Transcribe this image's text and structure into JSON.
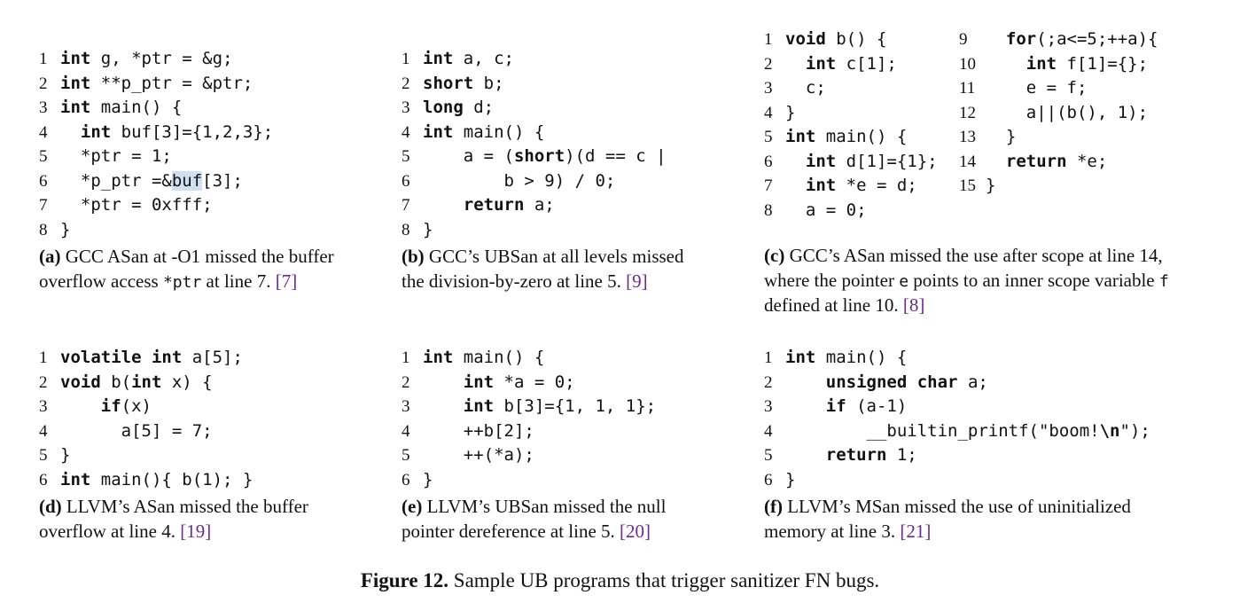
{
  "panels": {
    "a": {
      "code": [
        {
          "n": "1",
          "seg": [
            {
              "k": true,
              "t": "int"
            },
            {
              "t": " g, *ptr = &g;"
            }
          ]
        },
        {
          "n": "2",
          "seg": [
            {
              "k": true,
              "t": "int"
            },
            {
              "t": " **p_ptr = &ptr;"
            }
          ]
        },
        {
          "n": "3",
          "seg": [
            {
              "k": true,
              "t": "int"
            },
            {
              "t": " main() {"
            }
          ]
        },
        {
          "n": "4",
          "seg": [
            {
              "t": "  "
            },
            {
              "k": true,
              "t": "int"
            },
            {
              "t": " buf[3]={1,2,3};"
            }
          ]
        },
        {
          "n": "5",
          "seg": [
            {
              "t": "  *ptr = 1;"
            }
          ]
        },
        {
          "n": "6",
          "seg": [
            {
              "t": "  *p_ptr =&"
            },
            {
              "h": true,
              "t": "buf"
            },
            {
              "t": "[3];"
            }
          ]
        },
        {
          "n": "7",
          "seg": [
            {
              "t": "  *ptr = 0xfff;"
            }
          ]
        },
        {
          "n": "8",
          "seg": [
            {
              "t": "}"
            }
          ]
        }
      ],
      "caption_tag": "(a)",
      "caption_parts": [
        {
          "t": " GCC ASan at -O1 missed the buffer overflow access "
        },
        {
          "m": true,
          "t": "*ptr"
        },
        {
          "t": " at line 7. "
        },
        {
          "r": true,
          "t": "[7]"
        }
      ]
    },
    "b": {
      "code": [
        {
          "n": "1",
          "seg": [
            {
              "k": true,
              "t": "int"
            },
            {
              "t": " a, c;"
            }
          ]
        },
        {
          "n": "2",
          "seg": [
            {
              "k": true,
              "t": "short"
            },
            {
              "t": " b;"
            }
          ]
        },
        {
          "n": "3",
          "seg": [
            {
              "k": true,
              "t": "long"
            },
            {
              "t": " d;"
            }
          ]
        },
        {
          "n": "4",
          "seg": [
            {
              "k": true,
              "t": "int"
            },
            {
              "t": " main() {"
            }
          ]
        },
        {
          "n": "5",
          "seg": [
            {
              "t": "    a = ("
            },
            {
              "k": true,
              "t": "short"
            },
            {
              "t": ")(d == c |"
            }
          ]
        },
        {
          "n": "6",
          "seg": [
            {
              "t": "        b > 9) / 0;"
            }
          ]
        },
        {
          "n": "7",
          "seg": [
            {
              "t": "    "
            },
            {
              "k": true,
              "t": "return"
            },
            {
              "t": " a;"
            }
          ]
        },
        {
          "n": "8",
          "seg": [
            {
              "t": "}"
            }
          ]
        }
      ],
      "caption_tag": "(b)",
      "caption_parts": [
        {
          "t": " GCC’s UBSan at all levels missed the division-by-zero at line 5. "
        },
        {
          "r": true,
          "t": "[9]"
        }
      ]
    },
    "c_left": {
      "code": [
        {
          "n": "1",
          "seg": [
            {
              "k": true,
              "t": "void"
            },
            {
              "t": " b() {"
            }
          ]
        },
        {
          "n": "2",
          "seg": [
            {
              "t": "  "
            },
            {
              "k": true,
              "t": "int"
            },
            {
              "t": " c[1];"
            }
          ]
        },
        {
          "n": "3",
          "seg": [
            {
              "t": "  c;"
            }
          ]
        },
        {
          "n": "4",
          "seg": [
            {
              "t": "}"
            }
          ]
        },
        {
          "n": "5",
          "seg": [
            {
              "k": true,
              "t": "int"
            },
            {
              "t": " main() {"
            }
          ]
        },
        {
          "n": "6",
          "seg": [
            {
              "t": "  "
            },
            {
              "k": true,
              "t": "int"
            },
            {
              "t": " d[1]={1};"
            }
          ]
        },
        {
          "n": "7",
          "seg": [
            {
              "t": "  "
            },
            {
              "k": true,
              "t": "int"
            },
            {
              "t": " *e = d;"
            }
          ]
        },
        {
          "n": "8",
          "seg": [
            {
              "t": "  a = 0;"
            }
          ]
        }
      ]
    },
    "c_right": {
      "code": [
        {
          "n": "9",
          "seg": [
            {
              "t": "  "
            },
            {
              "k": true,
              "t": "for"
            },
            {
              "t": "(;a<=5;++a){"
            }
          ]
        },
        {
          "n": "10",
          "seg": [
            {
              "t": "    "
            },
            {
              "k": true,
              "t": "int"
            },
            {
              "t": " f[1]={};"
            }
          ]
        },
        {
          "n": "11",
          "seg": [
            {
              "t": "    e = f;"
            }
          ]
        },
        {
          "n": "12",
          "seg": [
            {
              "t": "    a||(b(), 1);"
            }
          ]
        },
        {
          "n": "13",
          "seg": [
            {
              "t": "  }"
            }
          ]
        },
        {
          "n": "14",
          "seg": [
            {
              "t": "  "
            },
            {
              "k": true,
              "t": "return"
            },
            {
              "t": " *e;"
            }
          ]
        },
        {
          "n": "15",
          "seg": [
            {
              "t": "}"
            }
          ]
        }
      ],
      "caption_tag": "(c)",
      "caption_parts": [
        {
          "t": " GCC’s ASan missed the use after scope at line 14, where the pointer "
        },
        {
          "m": true,
          "t": "e"
        },
        {
          "t": " points to an inner scope variable "
        },
        {
          "m": true,
          "t": "f"
        },
        {
          "t": " defined at line 10. "
        },
        {
          "r": true,
          "t": "[8]"
        }
      ]
    },
    "d": {
      "code": [
        {
          "n": "1",
          "seg": [
            {
              "k": true,
              "t": "volatile"
            },
            {
              "t": " "
            },
            {
              "k": true,
              "t": "int"
            },
            {
              "t": " a[5];"
            }
          ]
        },
        {
          "n": "2",
          "seg": [
            {
              "k": true,
              "t": "void"
            },
            {
              "t": " b("
            },
            {
              "k": true,
              "t": "int"
            },
            {
              "t": " x) {"
            }
          ]
        },
        {
          "n": "3",
          "seg": [
            {
              "t": "    "
            },
            {
              "k": true,
              "t": "if"
            },
            {
              "t": "(x)"
            }
          ]
        },
        {
          "n": "4",
          "seg": [
            {
              "t": "      a[5] = 7;"
            }
          ]
        },
        {
          "n": "5",
          "seg": [
            {
              "t": "}"
            }
          ]
        },
        {
          "n": "6",
          "seg": [
            {
              "k": true,
              "t": "int"
            },
            {
              "t": " main(){ b(1); }"
            }
          ]
        }
      ],
      "caption_tag": "(d)",
      "caption_parts": [
        {
          "t": " LLVM’s ASan missed the buffer overflow at line 4. "
        },
        {
          "r": true,
          "t": "[19]"
        }
      ]
    },
    "e": {
      "code": [
        {
          "n": "1",
          "seg": [
            {
              "k": true,
              "t": "int"
            },
            {
              "t": " main() {"
            }
          ]
        },
        {
          "n": "2",
          "seg": [
            {
              "t": "    "
            },
            {
              "k": true,
              "t": "int"
            },
            {
              "t": " *a = 0;"
            }
          ]
        },
        {
          "n": "3",
          "seg": [
            {
              "t": "    "
            },
            {
              "k": true,
              "t": "int"
            },
            {
              "t": " b[3]={1, 1, 1};"
            }
          ]
        },
        {
          "n": "4",
          "seg": [
            {
              "t": "    ++b[2];"
            }
          ]
        },
        {
          "n": "5",
          "seg": [
            {
              "t": "    ++(*a);"
            }
          ]
        },
        {
          "n": "6",
          "seg": [
            {
              "t": "}"
            }
          ]
        }
      ],
      "caption_tag": "(e)",
      "caption_parts": [
        {
          "t": " LLVM’s UBSan missed the null pointer dereference at line 5. "
        },
        {
          "r": true,
          "t": "[20]"
        }
      ]
    },
    "f": {
      "code": [
        {
          "n": "1",
          "seg": [
            {
              "k": true,
              "t": "int"
            },
            {
              "t": " main() {"
            }
          ]
        },
        {
          "n": "2",
          "seg": [
            {
              "t": "    "
            },
            {
              "k": true,
              "t": "unsigned"
            },
            {
              "t": " "
            },
            {
              "k": true,
              "t": "char"
            },
            {
              "t": " a;"
            }
          ]
        },
        {
          "n": "3",
          "seg": [
            {
              "t": "    "
            },
            {
              "k": true,
              "t": "if"
            },
            {
              "t": " (a-1)"
            }
          ]
        },
        {
          "n": "4",
          "seg": [
            {
              "t": "        __builtin_printf(\"boom!"
            },
            {
              "k": true,
              "t": "\\n"
            },
            {
              "t": "\");"
            }
          ]
        },
        {
          "n": "5",
          "seg": [
            {
              "t": "    "
            },
            {
              "k": true,
              "t": "return"
            },
            {
              "t": " 1;"
            }
          ]
        },
        {
          "n": "6",
          "seg": [
            {
              "t": "}"
            }
          ]
        }
      ],
      "caption_tag": "(f)",
      "caption_parts": [
        {
          "t": " LLVM’s MSan missed the use of uninitialized memory at line 3. "
        },
        {
          "r": true,
          "t": "[21]"
        }
      ]
    }
  },
  "figure": {
    "label": "Figure 12.",
    "text": " Sample UB programs that trigger sanitizer FN bugs."
  }
}
